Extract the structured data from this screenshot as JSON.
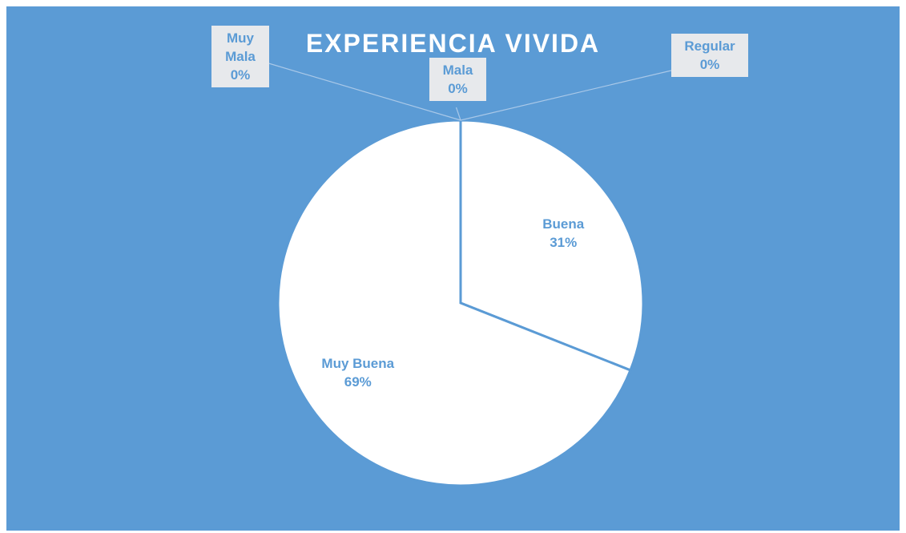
{
  "chart_data": {
    "type": "pie",
    "title": "EXPERIENCIA VIVIDA",
    "categories": [
      "Muy Mala",
      "Mala",
      "Regular",
      "Buena",
      "Muy Buena"
    ],
    "values": [
      0,
      0,
      0,
      31,
      69
    ],
    "value_labels": [
      "0%",
      "0%",
      "0%",
      "31%",
      "69%"
    ],
    "colors": [
      "#ffffff",
      "#ffffff",
      "#ffffff",
      "#ffffff",
      "#ffffff"
    ],
    "background": "#5b9bd5"
  }
}
